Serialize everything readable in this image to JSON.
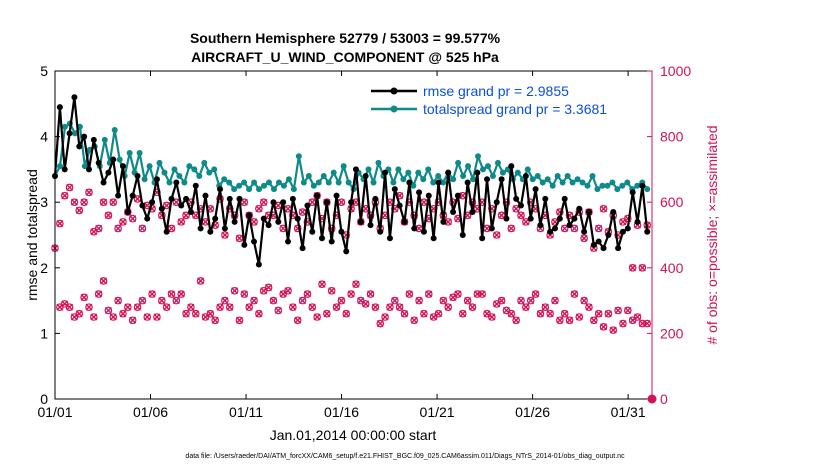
{
  "chart_data": {
    "type": "line",
    "title_line1": "Southern Hemisphere 52779 / 53003 = 99.577%",
    "title_line2": "AIRCRAFT_U_WIND_COMPONENT @ 525 hPa",
    "xlabel": "Jan.01,2014 00:00:00 start",
    "ylabel_left": "rmse and totalspread",
    "ylabel_right": "# of obs: o=possible; ×=assimilated",
    "x_ticks": [
      "01/01",
      "01/06",
      "01/11",
      "01/16",
      "01/21",
      "01/26",
      "01/31"
    ],
    "x_tick_days": [
      1,
      6,
      11,
      16,
      21,
      26,
      31
    ],
    "xlim_days": [
      1,
      32.25
    ],
    "ylim_left": [
      0,
      5
    ],
    "y_ticks_left": [
      "0",
      "1",
      "2",
      "3",
      "4",
      "5"
    ],
    "ylim_right": [
      0,
      1000
    ],
    "y_ticks_right": [
      "0",
      "200",
      "400",
      "600",
      "800",
      "1000"
    ],
    "footnote": "data file: /Users/raeder/DAI/ATM_forcXX/CAM6_setup/f.e21.FHIST_BGC.f09_025.CAM6assim.011/Diags_NTrS_2014-01/obs_diag_output.nc",
    "legend": [
      {
        "name": "rmse grand pr = 2.9855"
      },
      {
        "name": "totalspread grand pr = 3.3681"
      }
    ],
    "colors": {
      "rmse": "#000000",
      "totalspread": "#0f8a8a",
      "obs": "#d0135a"
    },
    "series": [
      {
        "name": "rmse",
        "values": [
          3.4,
          4.45,
          3.5,
          4.05,
          4.6,
          3.85,
          4.0,
          3.5,
          3.95,
          3.6,
          3.3,
          3.45,
          3.65,
          3.1,
          3.55,
          2.85,
          3.1,
          3.4,
          2.95,
          2.75,
          3.0,
          3.35,
          2.9,
          2.55,
          3.05,
          3.3,
          2.95,
          3.05,
          2.85,
          3.25,
          2.6,
          3.1,
          2.55,
          2.75,
          3.2,
          2.6,
          3.05,
          2.7,
          3.05,
          2.35,
          2.8,
          2.4,
          2.05,
          2.75,
          2.65,
          3.0,
          2.7,
          3.0,
          2.4,
          3.05,
          2.75,
          2.3,
          2.95,
          2.55,
          3.1,
          2.45,
          3.0,
          2.4,
          3.1,
          2.55,
          2.25,
          3.0,
          3.5,
          2.7,
          3.4,
          2.65,
          3.05,
          2.55,
          3.45,
          2.45,
          3.2,
          2.95,
          2.7,
          3.3,
          2.6,
          3.15,
          2.55,
          3.1,
          2.45,
          3.3,
          2.7,
          3.45,
          2.85,
          3.1,
          2.5,
          3.3,
          2.85,
          3.45,
          2.45,
          3.35,
          2.6,
          3.0,
          3.35,
          2.75,
          3.55,
          3.05,
          2.95,
          3.4,
          2.75,
          3.2,
          2.65,
          3.05,
          2.55,
          2.6,
          2.75,
          3.05,
          2.65,
          2.75,
          2.9,
          2.55,
          2.85,
          2.35,
          2.4,
          2.3,
          2.5,
          2.85,
          2.3,
          2.55,
          2.6,
          3.15,
          2.7,
          3.25,
          2.55
        ]
      },
      {
        "name": "totalspread",
        "values": [
          3.4,
          3.55,
          4.15,
          4.2,
          4.05,
          4.15,
          3.55,
          3.8,
          3.85,
          3.55,
          3.95,
          3.6,
          4.1,
          3.65,
          3.4,
          3.75,
          3.45,
          3.75,
          3.35,
          3.55,
          3.3,
          3.6,
          3.45,
          3.3,
          3.5,
          3.4,
          3.3,
          3.55,
          3.5,
          3.4,
          3.6,
          3.45,
          3.5,
          3.25,
          3.35,
          3.3,
          3.2,
          3.25,
          3.3,
          3.2,
          3.3,
          3.2,
          3.25,
          3.3,
          3.2,
          3.3,
          3.25,
          3.35,
          3.2,
          3.7,
          3.3,
          3.4,
          3.25,
          3.3,
          3.4,
          3.3,
          3.45,
          3.3,
          3.55,
          3.3,
          3.2,
          3.45,
          3.35,
          3.5,
          3.3,
          3.6,
          3.4,
          3.5,
          3.3,
          3.5,
          3.35,
          3.45,
          3.25,
          3.45,
          3.35,
          3.5,
          3.3,
          3.4,
          3.3,
          3.45,
          3.35,
          3.6,
          3.4,
          3.55,
          3.35,
          3.7,
          3.5,
          3.55,
          3.4,
          3.6,
          3.45,
          3.5,
          3.35,
          3.45,
          3.35,
          3.5,
          3.35,
          3.4,
          3.3,
          3.35,
          3.25,
          3.4,
          3.3,
          3.4,
          3.3,
          3.35,
          3.3,
          3.25,
          3.4,
          3.2,
          3.25,
          3.25,
          3.3,
          3.2,
          3.25,
          3.3,
          3.2,
          3.25,
          3.3,
          3.2
        ]
      },
      {
        "name": "obs possible (upper group)",
        "values": [
          460,
          535,
          620,
          645,
          600,
          575,
          600,
          630,
          510,
          520,
          600,
          560,
          600,
          520,
          540,
          570,
          550,
          610,
          520,
          590,
          580,
          630,
          560,
          590,
          520,
          600,
          540,
          560,
          600,
          560,
          580,
          540,
          580,
          530,
          610,
          500,
          580,
          560,
          490,
          600,
          560,
          540,
          580,
          600,
          560,
          560,
          590,
          520,
          580,
          560,
          520,
          570,
          540,
          600,
          620,
          550,
          600,
          520,
          560,
          600,
          500,
          580,
          600,
          540,
          580,
          560,
          600,
          520,
          560,
          600,
          580,
          620,
          540,
          600,
          560,
          520,
          600,
          550,
          580,
          600,
          560,
          540,
          600,
          550,
          620,
          560,
          600,
          580,
          600,
          520,
          580,
          500,
          560,
          600,
          520,
          580,
          560,
          540,
          600,
          580,
          520,
          560,
          500,
          540,
          570,
          520,
          560,
          520,
          570,
          490,
          570,
          460,
          520,
          580,
          510,
          560,
          500,
          540,
          550,
          400,
          530,
          400,
          530
        ]
      },
      {
        "name": "obs assimilated (lower group)",
        "values": [
          null,
          280,
          290,
          280,
          250,
          260,
          310,
          280,
          250,
          320,
          360,
          270,
          250,
          300,
          260,
          280,
          240,
          280,
          300,
          250,
          320,
          250,
          300,
          280,
          320,
          300,
          320,
          260,
          280,
          260,
          360,
          250,
          260,
          240,
          280,
          300,
          280,
          330,
          240,
          320,
          280,
          300,
          260,
          330,
          340,
          300,
          270,
          320,
          330,
          280,
          240,
          300,
          320,
          280,
          250,
          350,
          260,
          330,
          280,
          300,
          260,
          320,
          350,
          300,
          290,
          320,
          280,
          230,
          250,
          280,
          300,
          280,
          260,
          320,
          240,
          300,
          260,
          320,
          250,
          260,
          300,
          280,
          310,
          320,
          260,
          300,
          280,
          320,
          320,
          260,
          250,
          290,
          300,
          270,
          260,
          240,
          300,
          280,
          300,
          320,
          260,
          280,
          260,
          300,
          240,
          260,
          240,
          320,
          250,
          300,
          280,
          240,
          260,
          220,
          260,
          210,
          270,
          230,
          270,
          240,
          250,
          230,
          230
        ]
      }
    ]
  }
}
